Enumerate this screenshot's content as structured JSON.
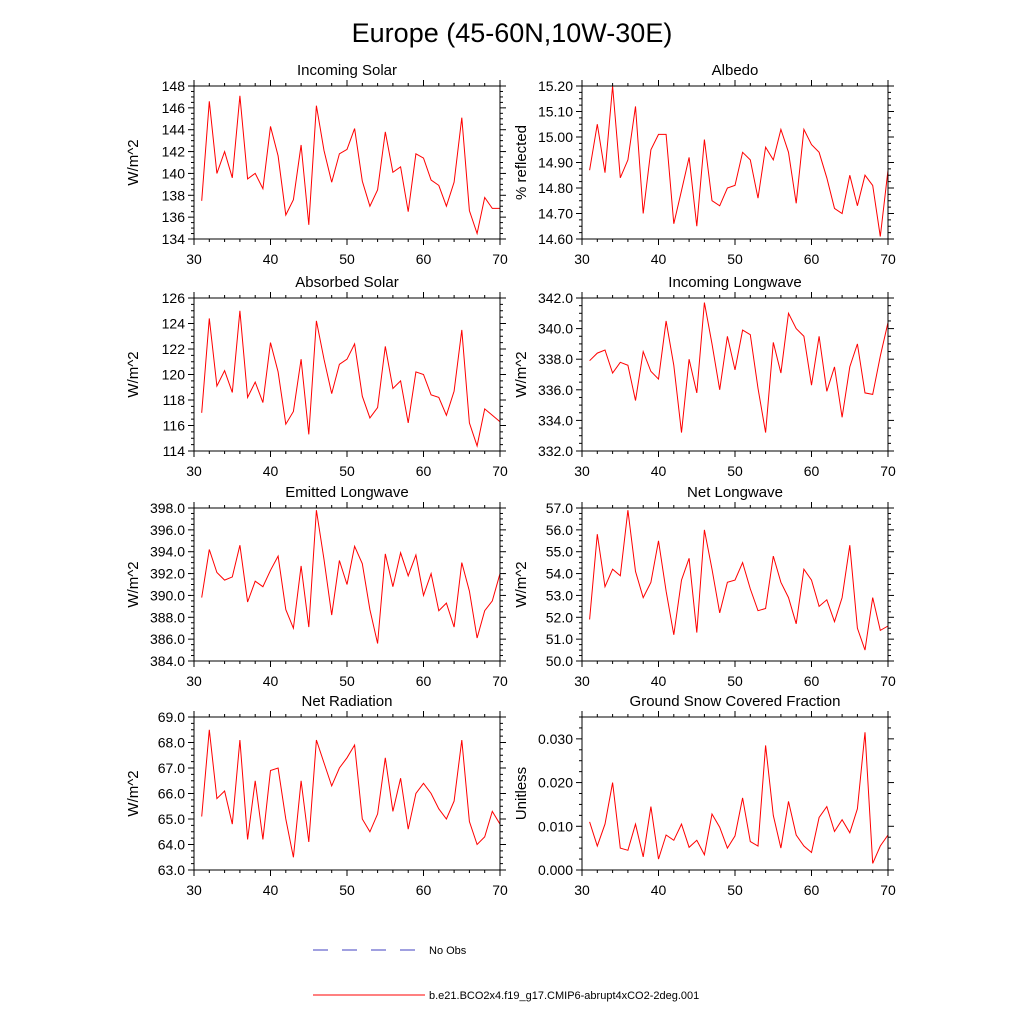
{
  "figure": {
    "title": "Europe (45-60N,10W-30E)"
  },
  "legend": {
    "obs_label": "No Obs",
    "model_label": "b.e21.BCO2x4.f19_g17.CMIP6-abrupt4xCO2-2deg.001",
    "obs_color": "#4040c0",
    "model_color": "#ff0000"
  },
  "chart_data": [
    {
      "type": "line",
      "title": "Incoming Solar",
      "xlabel": "",
      "ylabel": "W/m^2",
      "xlim": [
        30,
        70
      ],
      "ylim": [
        134,
        148
      ],
      "xticks": [
        30,
        40,
        50,
        60,
        70
      ],
      "yticks": [
        "134",
        "136",
        "138",
        "140",
        "142",
        "144",
        "146",
        "148"
      ],
      "series": [
        {
          "name": "b.e21.BCO2x4.f19_g17.CMIP6-abrupt4xCO2-2deg.001",
          "x": [
            31,
            32,
            33,
            34,
            35,
            36,
            37,
            38,
            39,
            40,
            41,
            42,
            43,
            44,
            45,
            46,
            47,
            48,
            49,
            50,
            51,
            52,
            53,
            54,
            55,
            56,
            57,
            58,
            59,
            60,
            61,
            62,
            63,
            64,
            65,
            66,
            67,
            68,
            69,
            70
          ],
          "values": [
            137.5,
            146.6,
            140.0,
            142.0,
            139.6,
            147.1,
            139.5,
            140.0,
            138.6,
            144.3,
            141.6,
            136.2,
            137.6,
            142.6,
            135.3,
            146.2,
            142.1,
            139.2,
            141.8,
            142.2,
            144.1,
            139.3,
            137.0,
            138.5,
            143.8,
            140.1,
            140.6,
            136.5,
            141.8,
            141.4,
            139.4,
            138.9,
            137.0,
            139.2,
            145.1,
            136.6,
            134.5,
            137.8,
            136.8,
            136.8
          ]
        }
      ]
    },
    {
      "type": "line",
      "title": "Albedo",
      "xlabel": "",
      "ylabel": "% reflected",
      "xlim": [
        30,
        70
      ],
      "ylim": [
        14.6,
        15.2
      ],
      "xticks": [
        30,
        40,
        50,
        60,
        70
      ],
      "yticks": [
        "14.60",
        "14.70",
        "14.80",
        "14.90",
        "15.00",
        "15.10",
        "15.20"
      ],
      "series": [
        {
          "name": "b.e21.BCO2x4.f19_g17.CMIP6-abrupt4xCO2-2deg.001",
          "x": [
            31,
            32,
            33,
            34,
            35,
            36,
            37,
            38,
            39,
            40,
            41,
            42,
            43,
            44,
            45,
            46,
            47,
            48,
            49,
            50,
            51,
            52,
            53,
            54,
            55,
            56,
            57,
            58,
            59,
            60,
            61,
            62,
            63,
            64,
            65,
            66,
            67,
            68,
            69,
            70
          ],
          "values": [
            14.87,
            15.05,
            14.86,
            15.2,
            14.84,
            14.91,
            15.12,
            14.7,
            14.95,
            15.01,
            15.01,
            14.66,
            14.79,
            14.92,
            14.65,
            14.99,
            14.75,
            14.73,
            14.8,
            14.81,
            14.94,
            14.91,
            14.76,
            14.96,
            14.91,
            15.03,
            14.94,
            14.74,
            15.03,
            14.97,
            14.94,
            14.84,
            14.72,
            14.7,
            14.85,
            14.73,
            14.85,
            14.81,
            14.61,
            14.87
          ]
        }
      ]
    },
    {
      "type": "line",
      "title": "Absorbed Solar",
      "xlabel": "",
      "ylabel": "W/m^2",
      "xlim": [
        30,
        70
      ],
      "ylim": [
        114,
        126
      ],
      "xticks": [
        30,
        40,
        50,
        60,
        70
      ],
      "yticks": [
        "114",
        "116",
        "118",
        "120",
        "122",
        "124",
        "126"
      ],
      "series": [
        {
          "name": "b.e21.BCO2x4.f19_g17.CMIP6-abrupt4xCO2-2deg.001",
          "x": [
            31,
            32,
            33,
            34,
            35,
            36,
            37,
            38,
            39,
            40,
            41,
            42,
            43,
            44,
            45,
            46,
            47,
            48,
            49,
            50,
            51,
            52,
            53,
            54,
            55,
            56,
            57,
            58,
            59,
            60,
            61,
            62,
            63,
            64,
            65,
            66,
            67,
            68,
            69,
            70
          ],
          "values": [
            117.0,
            124.4,
            119.1,
            120.3,
            118.6,
            125.0,
            118.2,
            119.4,
            117.8,
            122.5,
            120.2,
            116.1,
            117.1,
            121.2,
            115.3,
            124.2,
            121.2,
            118.5,
            120.8,
            121.2,
            122.4,
            118.3,
            116.6,
            117.4,
            122.2,
            118.9,
            119.5,
            116.2,
            120.2,
            120.0,
            118.4,
            118.2,
            116.8,
            118.7,
            123.5,
            116.2,
            114.4,
            117.3,
            116.8,
            116.3
          ]
        }
      ]
    },
    {
      "type": "line",
      "title": "Incoming Longwave",
      "xlabel": "",
      "ylabel": "W/m^2",
      "xlim": [
        30,
        70
      ],
      "ylim": [
        332,
        342
      ],
      "xticks": [
        30,
        40,
        50,
        60,
        70
      ],
      "yticks": [
        "332.0",
        "334.0",
        "336.0",
        "338.0",
        "340.0",
        "342.0"
      ],
      "series": [
        {
          "name": "b.e21.BCO2x4.f19_g17.CMIP6-abrupt4xCO2-2deg.001",
          "x": [
            31,
            32,
            33,
            34,
            35,
            36,
            37,
            38,
            39,
            40,
            41,
            42,
            43,
            44,
            45,
            46,
            47,
            48,
            49,
            50,
            51,
            52,
            53,
            54,
            55,
            56,
            57,
            58,
            59,
            60,
            61,
            62,
            63,
            64,
            65,
            66,
            67,
            68,
            69,
            70
          ],
          "values": [
            337.9,
            338.4,
            338.6,
            337.1,
            337.8,
            337.6,
            335.3,
            338.5,
            337.2,
            336.7,
            340.5,
            337.6,
            333.2,
            338.0,
            335.8,
            341.7,
            339.0,
            336.0,
            339.5,
            337.3,
            339.9,
            339.6,
            336.1,
            333.2,
            339.1,
            337.1,
            341.0,
            340.0,
            339.5,
            336.3,
            339.5,
            335.9,
            337.5,
            334.2,
            337.5,
            339.0,
            335.8,
            335.7,
            338.2,
            340.4
          ]
        }
      ]
    },
    {
      "type": "line",
      "title": "Emitted Longwave",
      "xlabel": "",
      "ylabel": "W/m^2",
      "xlim": [
        30,
        70
      ],
      "ylim": [
        384,
        398
      ],
      "xticks": [
        30,
        40,
        50,
        60,
        70
      ],
      "yticks": [
        "384.0",
        "386.0",
        "388.0",
        "390.0",
        "392.0",
        "394.0",
        "396.0",
        "398.0"
      ],
      "series": [
        {
          "name": "b.e21.BCO2x4.f19_g17.CMIP6-abrupt4xCO2-2deg.001",
          "x": [
            31,
            32,
            33,
            34,
            35,
            36,
            37,
            38,
            39,
            40,
            41,
            42,
            43,
            44,
            45,
            46,
            47,
            48,
            49,
            50,
            51,
            52,
            53,
            54,
            55,
            56,
            57,
            58,
            59,
            60,
            61,
            62,
            63,
            64,
            65,
            66,
            67,
            68,
            69,
            70
          ],
          "values": [
            389.8,
            394.2,
            392.1,
            391.4,
            391.7,
            394.6,
            389.4,
            391.3,
            390.8,
            392.3,
            393.6,
            388.7,
            387.0,
            392.7,
            387.1,
            397.8,
            393.3,
            388.2,
            393.2,
            391.0,
            394.5,
            392.9,
            388.7,
            385.6,
            393.8,
            390.8,
            393.9,
            391.8,
            393.7,
            390.0,
            392.0,
            388.6,
            389.3,
            387.1,
            393.0,
            390.4,
            386.1,
            388.6,
            389.5,
            392.0
          ]
        }
      ]
    },
    {
      "type": "line",
      "title": "Net Longwave",
      "xlabel": "",
      "ylabel": "W/m^2",
      "xlim": [
        30,
        70
      ],
      "ylim": [
        50,
        57
      ],
      "xticks": [
        30,
        40,
        50,
        60,
        70
      ],
      "yticks": [
        "50.0",
        "51.0",
        "52.0",
        "53.0",
        "54.0",
        "55.0",
        "56.0",
        "57.0"
      ],
      "series": [
        {
          "name": "b.e21.BCO2x4.f19_g17.CMIP6-abrupt4xCO2-2deg.001",
          "x": [
            31,
            32,
            33,
            34,
            35,
            36,
            37,
            38,
            39,
            40,
            41,
            42,
            43,
            44,
            45,
            46,
            47,
            48,
            49,
            50,
            51,
            52,
            53,
            54,
            55,
            56,
            57,
            58,
            59,
            60,
            61,
            62,
            63,
            64,
            65,
            66,
            67,
            68,
            69,
            70
          ],
          "values": [
            51.9,
            55.8,
            53.4,
            54.2,
            53.9,
            56.9,
            54.1,
            52.9,
            53.6,
            55.5,
            53.2,
            51.2,
            53.7,
            54.7,
            51.3,
            56.0,
            54.2,
            52.2,
            53.6,
            53.7,
            54.5,
            53.3,
            52.3,
            52.4,
            54.8,
            53.6,
            52.9,
            51.7,
            54.2,
            53.7,
            52.5,
            52.8,
            51.8,
            52.9,
            55.3,
            51.5,
            50.5,
            52.9,
            51.4,
            51.6
          ]
        }
      ]
    },
    {
      "type": "line",
      "title": "Net Radiation",
      "xlabel": "",
      "ylabel": "W/m^2",
      "xlim": [
        30,
        70
      ],
      "ylim": [
        63,
        69
      ],
      "xticks": [
        30,
        40,
        50,
        60,
        70
      ],
      "yticks": [
        "63.0",
        "64.0",
        "65.0",
        "66.0",
        "67.0",
        "68.0",
        "69.0"
      ],
      "series": [
        {
          "name": "b.e21.BCO2x4.f19_g17.CMIP6-abrupt4xCO2-2deg.001",
          "x": [
            31,
            32,
            33,
            34,
            35,
            36,
            37,
            38,
            39,
            40,
            41,
            42,
            43,
            44,
            45,
            46,
            47,
            48,
            49,
            50,
            51,
            52,
            53,
            54,
            55,
            56,
            57,
            58,
            59,
            60,
            61,
            62,
            63,
            64,
            65,
            66,
            67,
            68,
            69,
            70
          ],
          "values": [
            65.1,
            68.5,
            65.8,
            66.1,
            64.8,
            68.1,
            64.2,
            66.5,
            64.2,
            66.9,
            67.0,
            65.0,
            63.5,
            66.5,
            64.1,
            68.1,
            67.2,
            66.3,
            67.0,
            67.4,
            67.9,
            65.0,
            64.5,
            65.2,
            67.4,
            65.3,
            66.6,
            64.6,
            66.0,
            66.4,
            66.0,
            65.4,
            65.0,
            65.7,
            68.1,
            64.9,
            64.0,
            64.3,
            65.3,
            64.8
          ]
        }
      ]
    },
    {
      "type": "line",
      "title": "Ground Snow Covered Fraction",
      "xlabel": "",
      "ylabel": "Unitless",
      "xlim": [
        30,
        70
      ],
      "ylim": [
        0.0,
        0.035
      ],
      "xticks": [
        30,
        40,
        50,
        60,
        70
      ],
      "yticks": [
        "0.000",
        "0.010",
        "0.020",
        "0.030"
      ],
      "series": [
        {
          "name": "b.e21.BCO2x4.f19_g17.CMIP6-abrupt4xCO2-2deg.001",
          "x": [
            31,
            32,
            33,
            34,
            35,
            36,
            37,
            38,
            39,
            40,
            41,
            42,
            43,
            44,
            45,
            46,
            47,
            48,
            49,
            50,
            51,
            52,
            53,
            54,
            55,
            56,
            57,
            58,
            59,
            60,
            61,
            62,
            63,
            64,
            65,
            66,
            67,
            68,
            69,
            70
          ],
          "values": [
            0.011,
            0.0055,
            0.0105,
            0.02,
            0.005,
            0.0045,
            0.0105,
            0.003,
            0.0145,
            0.0025,
            0.008,
            0.0068,
            0.0105,
            0.0052,
            0.0068,
            0.0035,
            0.0128,
            0.0098,
            0.005,
            0.0078,
            0.0165,
            0.0065,
            0.0055,
            0.0285,
            0.0125,
            0.005,
            0.0157,
            0.008,
            0.0055,
            0.004,
            0.012,
            0.0145,
            0.0088,
            0.0115,
            0.0085,
            0.014,
            0.0315,
            0.0015,
            0.0055,
            0.008
          ]
        }
      ]
    }
  ]
}
